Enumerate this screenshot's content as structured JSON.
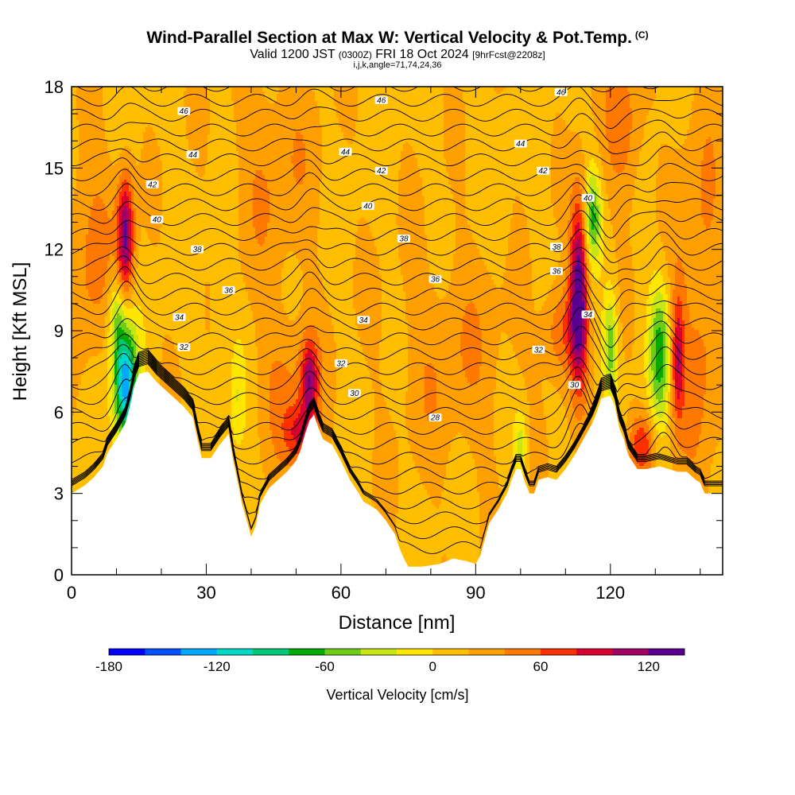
{
  "title": "Wind-Parallel Section at Max W: Vertical Velocity & Pot.Temp.",
  "copyright": "(C)",
  "subtitle_main": "Valid 1200 JST",
  "subtitle_utc": "(0300Z)",
  "subtitle_date": "FRI 18 Oct 2024",
  "subtitle_fcst": "[9hrFcst@2208z]",
  "indices": "i,j,k,angle=71,74,24,36",
  "chart_data": {
    "type": "heatmap",
    "xlabel": "Distance [nm]",
    "ylabel": "Height [Kft MSL]",
    "xlim": [
      0,
      145
    ],
    "ylim": [
      0,
      18
    ],
    "x_ticks": [
      0,
      30,
      60,
      90,
      120
    ],
    "y_ticks": [
      0,
      3,
      6,
      9,
      12,
      15,
      18
    ],
    "terrain": [
      [
        0,
        3.0
      ],
      [
        3,
        3.3
      ],
      [
        5,
        3.6
      ],
      [
        7,
        4.0
      ],
      [
        8,
        4.5
      ],
      [
        10,
        5.0
      ],
      [
        11,
        5.3
      ],
      [
        12,
        5.6
      ],
      [
        13,
        6.2
      ],
      [
        14,
        7.0
      ],
      [
        15,
        7.4
      ],
      [
        17,
        7.5
      ],
      [
        19,
        7.1
      ],
      [
        21,
        6.8
      ],
      [
        23,
        6.5
      ],
      [
        25,
        6.2
      ],
      [
        27,
        5.8
      ],
      [
        28,
        5.0
      ],
      [
        29,
        4.3
      ],
      [
        31,
        4.3
      ],
      [
        33,
        4.8
      ],
      [
        35,
        5.2
      ],
      [
        36,
        4.2
      ],
      [
        37,
        3.4
      ],
      [
        38,
        2.6
      ],
      [
        39,
        2.0
      ],
      [
        40,
        1.4
      ],
      [
        41,
        1.8
      ],
      [
        42,
        2.6
      ],
      [
        44,
        3.2
      ],
      [
        46,
        3.5
      ],
      [
        48,
        3.8
      ],
      [
        50,
        4.2
      ],
      [
        51,
        4.6
      ],
      [
        52,
        5.2
      ],
      [
        53,
        5.7
      ],
      [
        54,
        5.9
      ],
      [
        55,
        5.4
      ],
      [
        56,
        5.0
      ],
      [
        58,
        4.8
      ],
      [
        60,
        4.2
      ],
      [
        62,
        3.5
      ],
      [
        64,
        3.0
      ],
      [
        65,
        2.7
      ],
      [
        66,
        2.6
      ],
      [
        68,
        2.4
      ],
      [
        70,
        2.0
      ],
      [
        72,
        1.5
      ],
      [
        73,
        1.0
      ],
      [
        74,
        0.6
      ],
      [
        75,
        0.3
      ],
      [
        78,
        0.3
      ],
      [
        82,
        0.4
      ],
      [
        85,
        0.6
      ],
      [
        88,
        0.5
      ],
      [
        90,
        0.4
      ],
      [
        91,
        0.7
      ],
      [
        92,
        1.3
      ],
      [
        93,
        1.9
      ],
      [
        95,
        2.4
      ],
      [
        97,
        3.0
      ],
      [
        98,
        3.5
      ],
      [
        99,
        3.9
      ],
      [
        100,
        3.9
      ],
      [
        101,
        3.4
      ],
      [
        102,
        3.0
      ],
      [
        103,
        3.0
      ],
      [
        104,
        3.5
      ],
      [
        106,
        3.6
      ],
      [
        108,
        3.5
      ],
      [
        110,
        3.9
      ],
      [
        112,
        4.4
      ],
      [
        114,
        5.0
      ],
      [
        116,
        5.6
      ],
      [
        117,
        6.0
      ],
      [
        118,
        6.5
      ],
      [
        120,
        6.6
      ],
      [
        121,
        6.2
      ],
      [
        122,
        5.4
      ],
      [
        123,
        5.0
      ],
      [
        124,
        4.4
      ],
      [
        126,
        3.9
      ],
      [
        128,
        3.9
      ],
      [
        131,
        4.0
      ],
      [
        133,
        3.9
      ],
      [
        135,
        3.8
      ],
      [
        137,
        3.8
      ],
      [
        139,
        3.5
      ],
      [
        140,
        3.4
      ],
      [
        141,
        3.0
      ],
      [
        142,
        3.0
      ],
      [
        145,
        3.0
      ]
    ],
    "theta_contour_labels": [
      {
        "label": "46",
        "x": 25,
        "y": 17.1
      },
      {
        "label": "46",
        "x": 69,
        "y": 17.5
      },
      {
        "label": "46",
        "x": 109,
        "y": 17.8
      },
      {
        "label": "44",
        "x": 27,
        "y": 15.5
      },
      {
        "label": "44",
        "x": 61,
        "y": 15.6
      },
      {
        "label": "44",
        "x": 100,
        "y": 15.9
      },
      {
        "label": "42",
        "x": 18,
        "y": 14.4
      },
      {
        "label": "42",
        "x": 69,
        "y": 14.9
      },
      {
        "label": "42",
        "x": 105,
        "y": 14.9
      },
      {
        "label": "40",
        "x": 19,
        "y": 13.1
      },
      {
        "label": "40",
        "x": 66,
        "y": 13.6
      },
      {
        "label": "40",
        "x": 115,
        "y": 13.9
      },
      {
        "label": "38",
        "x": 28,
        "y": 12.0
      },
      {
        "label": "38",
        "x": 74,
        "y": 12.4
      },
      {
        "label": "38",
        "x": 108,
        "y": 12.1
      },
      {
        "label": "36",
        "x": 35,
        "y": 10.5
      },
      {
        "label": "36",
        "x": 81,
        "y": 10.9
      },
      {
        "label": "36",
        "x": 108,
        "y": 11.2
      },
      {
        "label": "34",
        "x": 24,
        "y": 9.5
      },
      {
        "label": "34",
        "x": 65,
        "y": 9.4
      },
      {
        "label": "34",
        "x": 115,
        "y": 9.6
      },
      {
        "label": "32",
        "x": 25,
        "y": 8.4
      },
      {
        "label": "32",
        "x": 60,
        "y": 7.8
      },
      {
        "label": "32",
        "x": 104,
        "y": 8.3
      },
      {
        "label": "30",
        "x": 63,
        "y": 6.7
      },
      {
        "label": "30",
        "x": 112,
        "y": 7.0
      },
      {
        "label": "28",
        "x": 81,
        "y": 5.8
      }
    ],
    "colorbar": {
      "label": "Vertical Velocity [cm/s]",
      "min": -180,
      "max": 140,
      "step": 20,
      "tick_values": [
        -180,
        -120,
        -60,
        0,
        60,
        120
      ],
      "tick_labels": [
        "-180",
        "-120",
        "-60",
        "0",
        "60",
        "120"
      ],
      "colors": [
        "#0000ff",
        "#0050ff",
        "#00a8ff",
        "#00d8c8",
        "#00c878",
        "#00aa00",
        "#6ecb18",
        "#c8e614",
        "#ffe600",
        "#ffbe00",
        "#ffa000",
        "#ff7800",
        "#ff3000",
        "#d80030",
        "#a00064",
        "#5a0090"
      ]
    },
    "w_features": [
      {
        "x": 12,
        "y": 12.5,
        "w": 110,
        "sx": 1.3,
        "sy": 1.6
      },
      {
        "x": 12,
        "y": 7.0,
        "w": -150,
        "sx": 1.8,
        "sy": 1.5
      },
      {
        "x": 10,
        "y": 9.5,
        "w": -55,
        "sx": 1.4,
        "sy": 1.2
      },
      {
        "x": 53,
        "y": 7.2,
        "w": 85,
        "sx": 1.3,
        "sy": 1.0
      },
      {
        "x": 51,
        "y": 5.2,
        "w": 60,
        "sx": 2.5,
        "sy": 0.8
      },
      {
        "x": 113,
        "y": 10.5,
        "w": 125,
        "sx": 1.4,
        "sy": 2.4
      },
      {
        "x": 116,
        "y": 13.2,
        "w": -75,
        "sx": 1.3,
        "sy": 1.2
      },
      {
        "x": 120,
        "y": 8.5,
        "w": -65,
        "sx": 1.1,
        "sy": 1.4
      },
      {
        "x": 131,
        "y": 8.2,
        "w": -80,
        "sx": 1.6,
        "sy": 1.8
      },
      {
        "x": 135,
        "y": 8.0,
        "w": 75,
        "sx": 1.0,
        "sy": 1.6
      },
      {
        "x": 127,
        "y": 4.8,
        "w": 60,
        "sx": 2.0,
        "sy": 0.8
      },
      {
        "x": 109,
        "y": 9.0,
        "w": 45,
        "sx": 3.0,
        "sy": 1.2
      },
      {
        "x": 100,
        "y": 4.8,
        "w": -45,
        "sx": 1.1,
        "sy": 1.0
      },
      {
        "x": 4,
        "y": 12,
        "w": 32,
        "sx": 4,
        "sy": 3
      },
      {
        "x": 48,
        "y": 7,
        "w": 28,
        "sx": 5,
        "sy": 2
      },
      {
        "x": 85,
        "y": 8,
        "w": 22,
        "sx": 10,
        "sy": 3
      },
      {
        "x": 140,
        "y": 10,
        "w": 35,
        "sx": 4,
        "sy": 5
      },
      {
        "x": 123,
        "y": 16.5,
        "w": 40,
        "sx": 3,
        "sy": 2
      },
      {
        "x": 45,
        "y": 15,
        "w": 24,
        "sx": 7,
        "sy": 3
      },
      {
        "x": 37,
        "y": 6.5,
        "w": -30,
        "sx": 1.2,
        "sy": 1.5
      },
      {
        "x": 33,
        "y": 10,
        "w": -15,
        "sx": 1.5,
        "sy": 2
      },
      {
        "x": 96,
        "y": 14,
        "w": -12,
        "sx": 1.5,
        "sy": 2
      }
    ]
  }
}
